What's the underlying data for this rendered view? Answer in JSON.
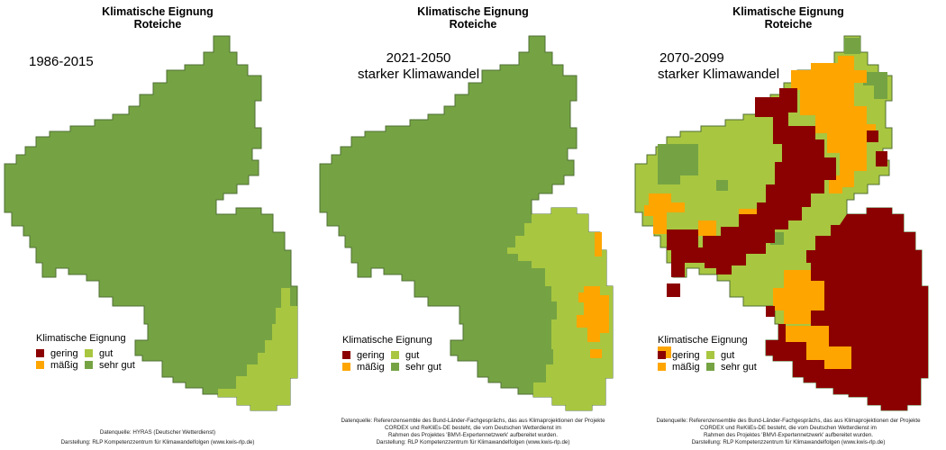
{
  "colors": {
    "gering": "#8b0000",
    "maessig": "#ffa500",
    "gut": "#a8c640",
    "sehr_gut": "#75a343",
    "outline": "#4f6f34"
  },
  "legend": {
    "title": "Klimatische Eignung",
    "items": [
      {
        "key": "gering",
        "label": "gering"
      },
      {
        "key": "gut",
        "label": "gut"
      },
      {
        "key": "maessig",
        "label": "mäßig"
      },
      {
        "key": "sehr_gut",
        "label": "sehr gut"
      }
    ]
  },
  "panels": [
    {
      "title_line1": "Klimatische Eignung",
      "title_line2": "Roteiche",
      "period": "1986-2015",
      "scenario": "",
      "source_line1": "Datenquelle: HYRAS (Deutscher Wetterdienst)",
      "source_line2": "",
      "source_line3": "",
      "credit": "Darstellung: RLP Kompetenzzentrum für Klimawandelfolgen (www.kwis-rlp.de)"
    },
    {
      "title_line1": "Klimatische Eignung",
      "title_line2": "Roteiche",
      "period": "2021-2050",
      "scenario": "starker Klimawandel",
      "source_line1": "Datenquelle: Referenzensemble des Bund-Länder-Fachgesprächs, das aus Klimaprojektionen der Projekte",
      "source_line2": "CORDEX und ReKliEs-DE besteht, die vom Deutschen Wetterdienst im",
      "source_line3": "Rahmen des Projektes 'BMVI-Expertennetzwerk' aufbereitet wurden.",
      "credit": "Darstellung: RLP Kompetenzzentrum für Klimawandelfolgen (www.kwis-rlp.de)"
    },
    {
      "title_line1": "Klimatische Eignung",
      "title_line2": "Roteiche",
      "period": "2070-2099",
      "scenario": "starker Klimawandel",
      "source_line1": "Datenquelle: Referenzensemble des Bund-Länder-Fachgesprächs, das aus Klimaprojektionen der Projekte",
      "source_line2": "CORDEX und ReKliEs-DE besteht, die vom Deutschen Wetterdienst im",
      "source_line3": "Rahmen des Projektes 'BMVI-Expertennetzwerk' aufbereitet wurden.",
      "credit": "Darstellung: RLP Kompetenzzentrum für Klimawandelfolgen (www.kwis-rlp.de)"
    }
  ]
}
